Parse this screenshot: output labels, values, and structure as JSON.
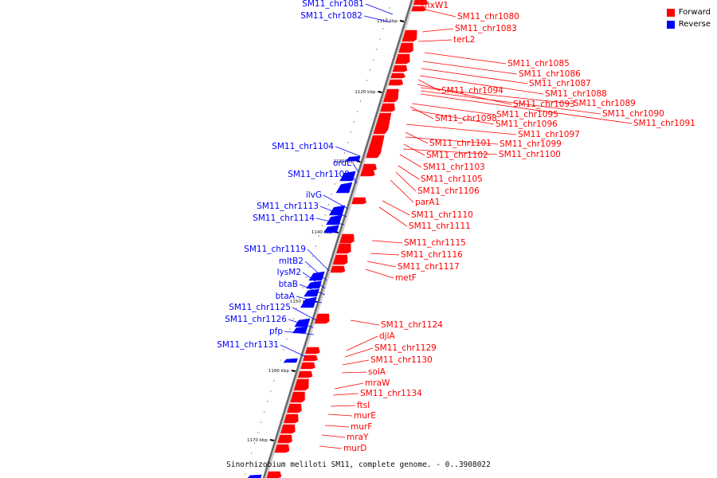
{
  "caption": "Sinorhizobium meliloti SM11, complete genome. - 0..3908022",
  "legend": [
    {
      "label": "Forward",
      "color": "#ff0000"
    },
    {
      "label": "Reverse",
      "color": "#0000ff"
    }
  ],
  "ticks": [
    "1110 kbp",
    "1120 kbp",
    "1130 kbp",
    "1140 kbp",
    "1150 kbp",
    "1160 kbp",
    "1170 kbp"
  ],
  "forward_labels": [
    "fixW1",
    "SM11_chr1080",
    "SM11_chr1083",
    "terL2",
    "SM11_chr1085",
    "SM11_chr1086",
    "SM11_chr1087",
    "SM11_chr1088",
    "SM11_chr1094",
    "SM11_chr1093",
    "SM11_chr1089",
    "SM11_chr1090",
    "SM11_chr1091",
    "SM11_chr1095",
    "SM11_chr1098",
    "SM11_chr1096",
    "SM11_chr1097",
    "SM11_chr1101",
    "SM11_chr1099",
    "SM11_chr1102",
    "SM11_chr1100",
    "SM11_chr1103",
    "SM11_chr1105",
    "SM11_chr1106",
    "parA1",
    "SM11_chr1110",
    "SM11_chr1111",
    "SM11_chr1115",
    "SM11_chr1116",
    "SM11_chr1117",
    "metF",
    "SM11_chr1124",
    "djlA",
    "SM11_chr1129",
    "SM11_chr1130",
    "solA",
    "mraW",
    "SM11_chr1134",
    "ftsI",
    "murE",
    "murF",
    "mraY",
    "murD"
  ],
  "reverse_labels": [
    "SM11_chr1081",
    "SM11_chr1082",
    "SM11_chr1104",
    "ordL",
    "SM11_chr1109",
    "ilvG",
    "SM11_chr1113",
    "SM11_chr1114",
    "SM11_chr1119",
    "mltB2",
    "lysM2",
    "btaB",
    "btaA",
    "SM11_chr1125",
    "SM11_chr1126",
    "pfp",
    "SM11_chr1131"
  ]
}
